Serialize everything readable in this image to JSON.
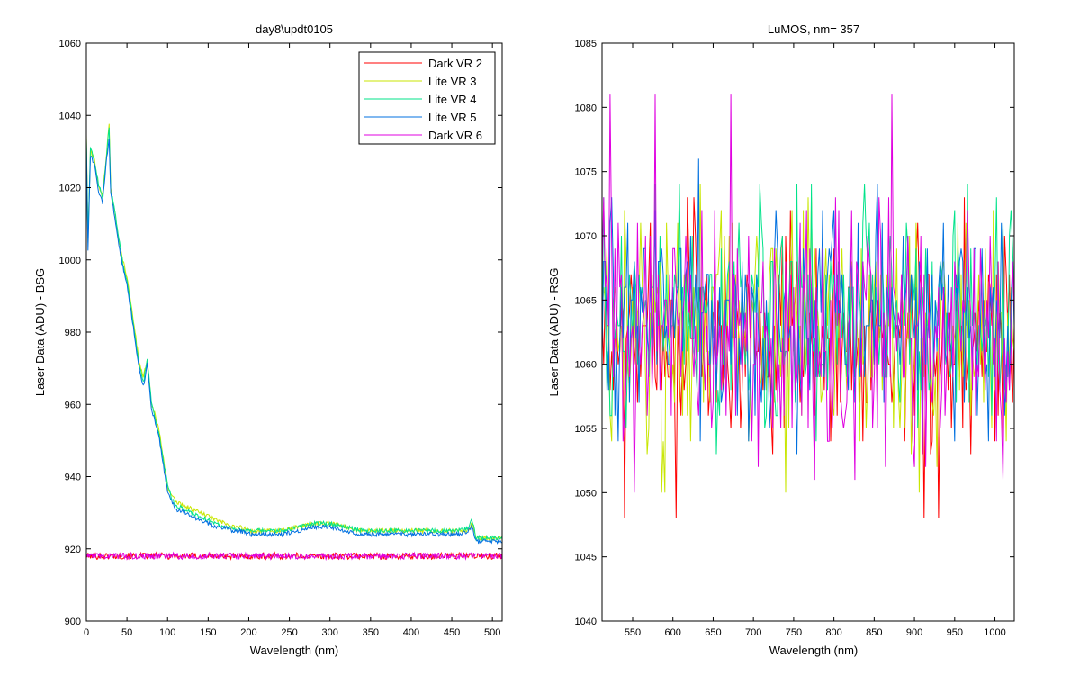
{
  "chart_data": [
    {
      "type": "line",
      "title": "day8\\updt0105",
      "xlabel": "Wavelength (nm)",
      "ylabel": "Laser Data (ADU) - BSG",
      "xlim": [
        0,
        512
      ],
      "ylim": [
        900,
        1060
      ],
      "xticks": [
        0,
        50,
        100,
        150,
        200,
        250,
        300,
        350,
        400,
        450,
        500
      ],
      "yticks": [
        900,
        920,
        940,
        960,
        980,
        1000,
        1020,
        1040,
        1060
      ],
      "grid": false,
      "legend": "top-right",
      "series": [
        {
          "name": "Dark VR 2",
          "color": "#ff0000",
          "x": [
            0,
            50,
            100,
            150,
            200,
            250,
            300,
            350,
            400,
            450,
            512
          ],
          "y": [
            918,
            918,
            918,
            918,
            918,
            918,
            918,
            918,
            918,
            918,
            918
          ]
        },
        {
          "name": "Lite VR 3",
          "color": "#c8e600",
          "x": [
            0,
            2,
            5,
            10,
            15,
            20,
            25,
            28,
            30,
            35,
            40,
            45,
            50,
            55,
            60,
            65,
            70,
            75,
            80,
            85,
            90,
            95,
            100,
            105,
            110,
            120,
            130,
            140,
            150,
            160,
            170,
            180,
            190,
            200,
            220,
            240,
            260,
            280,
            300,
            320,
            340,
            360,
            380,
            400,
            420,
            440,
            460,
            470,
            475,
            480,
            490,
            500,
            512
          ],
          "y": [
            1035,
            1005,
            1030,
            1028,
            1020,
            1018,
            1030,
            1038,
            1020,
            1013,
            1005,
            1000,
            995,
            988,
            980,
            972,
            967,
            973,
            960,
            957,
            952,
            945,
            937,
            935,
            933,
            932,
            931,
            930,
            929,
            928,
            927,
            926,
            926,
            925,
            925,
            925,
            926,
            927,
            927,
            926,
            925,
            925,
            925,
            925,
            925,
            925,
            925,
            925,
            927,
            923,
            923,
            923,
            923
          ]
        },
        {
          "name": "Lite VR 4",
          "color": "#00e38a",
          "x": [
            0,
            2,
            5,
            10,
            15,
            20,
            25,
            28,
            30,
            35,
            40,
            45,
            50,
            55,
            60,
            65,
            70,
            75,
            80,
            85,
            90,
            95,
            100,
            105,
            110,
            120,
            130,
            140,
            150,
            160,
            170,
            180,
            190,
            200,
            220,
            240,
            260,
            280,
            300,
            320,
            340,
            360,
            380,
            400,
            420,
            440,
            460,
            470,
            475,
            480,
            490,
            500,
            512
          ],
          "y": [
            1034,
            1006,
            1031,
            1027,
            1021,
            1017,
            1029,
            1037,
            1019,
            1014,
            1006,
            999,
            994,
            987,
            979,
            971,
            966,
            972,
            961,
            956,
            951,
            944,
            938,
            934,
            932,
            931,
            930,
            929,
            928,
            927,
            926,
            926,
            925,
            925,
            925,
            925,
            926,
            927,
            927,
            926,
            925,
            925,
            925,
            925,
            925,
            925,
            925,
            926,
            928,
            923,
            923,
            923,
            923
          ]
        },
        {
          "name": "Lite VR 5",
          "color": "#0070e0",
          "x": [
            0,
            2,
            5,
            10,
            15,
            20,
            25,
            28,
            30,
            35,
            40,
            45,
            50,
            55,
            60,
            65,
            70,
            75,
            80,
            85,
            90,
            95,
            100,
            105,
            110,
            120,
            130,
            140,
            150,
            160,
            170,
            180,
            190,
            200,
            220,
            240,
            260,
            280,
            300,
            320,
            340,
            360,
            380,
            400,
            420,
            440,
            460,
            470,
            475,
            480,
            490,
            500,
            512
          ],
          "y": [
            1033,
            1002,
            1029,
            1026,
            1019,
            1016,
            1028,
            1034,
            1018,
            1012,
            1004,
            998,
            993,
            986,
            978,
            970,
            965,
            971,
            959,
            955,
            950,
            943,
            936,
            933,
            931,
            930,
            929,
            928,
            927,
            926,
            926,
            925,
            925,
            924,
            924,
            924,
            925,
            926,
            926,
            925,
            924,
            924,
            924,
            924,
            924,
            924,
            924,
            925,
            926,
            922,
            922,
            922,
            922
          ]
        },
        {
          "name": "Dark VR 6",
          "color": "#e000e0",
          "x": [
            0,
            50,
            100,
            150,
            200,
            250,
            300,
            350,
            400,
            450,
            512
          ],
          "y": [
            918,
            918,
            918,
            918,
            918,
            918,
            918,
            918,
            918,
            918,
            918
          ]
        }
      ]
    },
    {
      "type": "line",
      "title": "LuMOS, nm= 357",
      "xlabel": "Wavelength (nm)",
      "ylabel": "Laser Data (ADU) - RSG",
      "xlim": [
        512,
        1024
      ],
      "ylim": [
        1040,
        1085
      ],
      "xticks": [
        550,
        600,
        650,
        700,
        750,
        800,
        850,
        900,
        950,
        1000
      ],
      "yticks": [
        1040,
        1045,
        1050,
        1055,
        1060,
        1065,
        1070,
        1075,
        1080,
        1085
      ],
      "grid": false,
      "series": [
        {
          "color": "#ff0000",
          "mean": 1062,
          "range": [
            1048,
            1073
          ]
        },
        {
          "color": "#c8e600",
          "mean": 1063,
          "range": [
            1050,
            1080
          ]
        },
        {
          "color": "#00e38a",
          "mean": 1064,
          "range": [
            1049,
            1078
          ]
        },
        {
          "color": "#0070e0",
          "mean": 1063,
          "range": [
            1049,
            1076
          ]
        },
        {
          "color": "#e000e0",
          "mean": 1062,
          "range": [
            1049,
            1081
          ]
        }
      ]
    }
  ]
}
